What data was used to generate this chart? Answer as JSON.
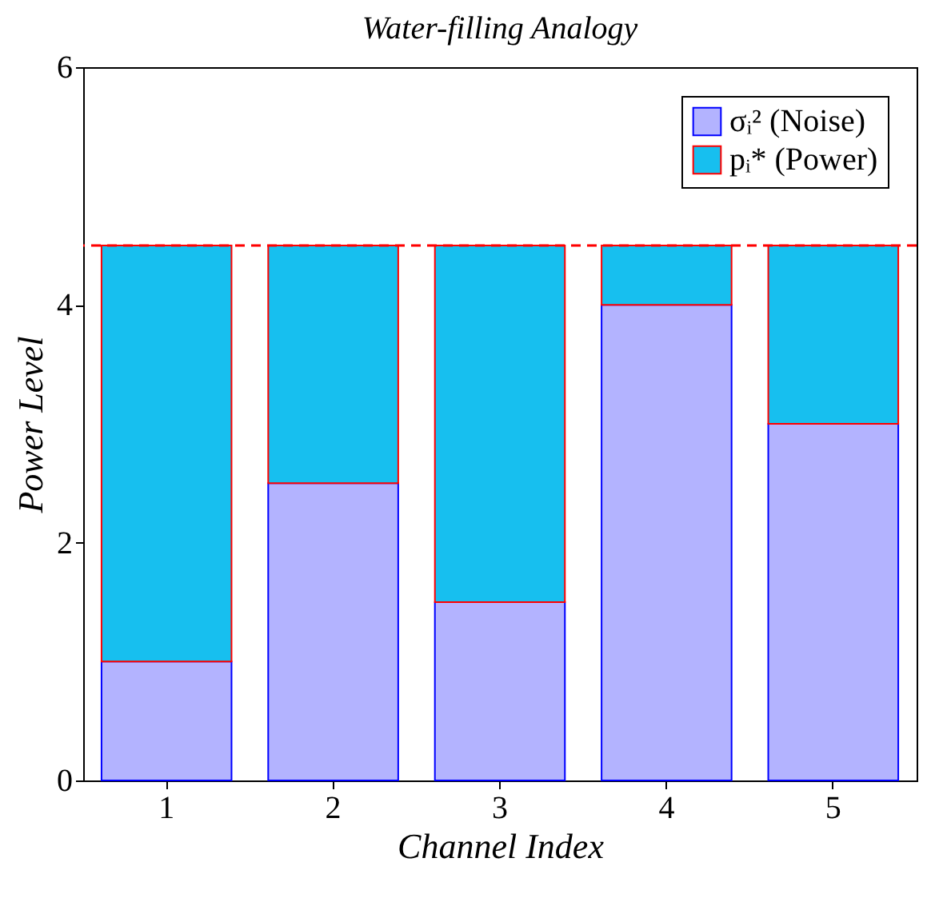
{
  "chart_data": {
    "type": "bar",
    "title": "Water-filling Analogy",
    "xlabel": "Channel Index",
    "ylabel": "Power Level",
    "categories": [
      "1",
      "2",
      "3",
      "4",
      "5"
    ],
    "stacked": true,
    "series": [
      {
        "name": "σᵢ² (Noise)",
        "color": "#b3b3ff",
        "values": [
          1,
          2.5,
          1.5,
          4,
          3
        ]
      },
      {
        "name": "pᵢ* (Power)",
        "color": "#17bfef",
        "values": [
          3.5,
          2,
          3,
          0.5,
          1.5
        ]
      }
    ],
    "ylim": [
      0,
      6
    ],
    "yticks": [
      0,
      2,
      4,
      6
    ],
    "grid": false,
    "legend": "top right",
    "ref_lines": [
      {
        "axis": "y",
        "value": 4.5,
        "color": "#ff0000",
        "line_style": "dashed"
      }
    ]
  }
}
